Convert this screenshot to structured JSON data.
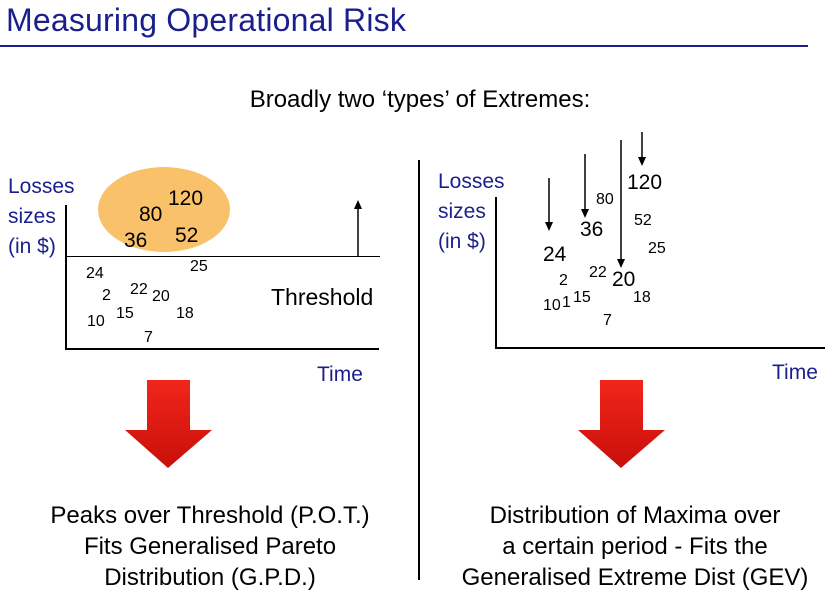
{
  "slide": {
    "title": "Measuring Operational Risk",
    "subtitle": "Broadly two ‘types’ of Extremes:"
  },
  "left_panel": {
    "y_label": [
      "Losses",
      "sizes",
      "(in $)"
    ],
    "x_label": "Time",
    "threshold_label": "Threshold",
    "peaks": [
      "80",
      "120",
      "36",
      "52"
    ],
    "values": [
      "24",
      "25",
      "2",
      "22",
      "20",
      "10",
      "15",
      "18",
      "7"
    ],
    "caption": [
      "Peaks over Threshold (P.O.T.)",
      "Fits Generalised Pareto",
      "Distribution (G.P.D.)"
    ]
  },
  "right_panel": {
    "y_label": [
      "Losses",
      "sizes",
      "(in $)"
    ],
    "x_label": "Time",
    "maxima": [
      "120",
      "80",
      "36",
      "24",
      "20"
    ],
    "values": [
      "52",
      "25",
      "2",
      "22",
      "10",
      "1",
      "15",
      "18",
      "7"
    ],
    "caption": [
      "Distribution of Maxima over",
      "a certain period - Fits the",
      "Generalised Extreme Dist (GEV)"
    ]
  },
  "colors": {
    "title": "#1a1f8c",
    "highlight": "#f9c16a",
    "arrow": "#e31b12"
  }
}
